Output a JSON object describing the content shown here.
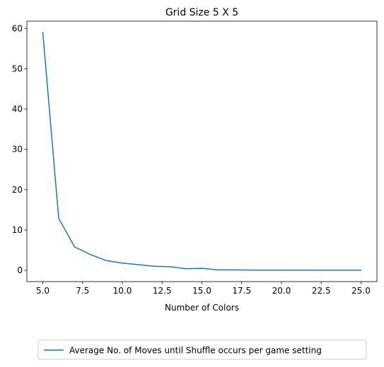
{
  "chart_data": {
    "type": "line",
    "title": "Grid Size 5 X 5",
    "xlabel": "Number of Colors",
    "ylabel": "",
    "xlim": [
      4.0,
      26.0
    ],
    "ylim": [
      -2.8,
      61.8
    ],
    "x_ticks": [
      5.0,
      7.5,
      10.0,
      12.5,
      15.0,
      17.5,
      20.0,
      22.5,
      25.0
    ],
    "x_tick_labels": [
      "5.0",
      "7.5",
      "10.0",
      "12.5",
      "15.0",
      "17.5",
      "20.0",
      "22.5",
      "25.0"
    ],
    "y_ticks": [
      0,
      10,
      20,
      30,
      40,
      50,
      60
    ],
    "y_tick_labels": [
      "0",
      "10",
      "20",
      "30",
      "40",
      "50",
      "60"
    ],
    "grid": false,
    "legend_position": "bottom-center-outside",
    "series": [
      {
        "name": "Average No. of Moves until Shuffle occurs per game setting",
        "color": "#1f77b4",
        "x": [
          5,
          6,
          7,
          8,
          9,
          10,
          11,
          12,
          13,
          14,
          15,
          16,
          17,
          18,
          19,
          20,
          21,
          22,
          23,
          24,
          25
        ],
        "y": [
          59.0,
          12.9,
          5.8,
          3.9,
          2.4,
          1.8,
          1.4,
          1.0,
          0.9,
          0.4,
          0.5,
          0.1,
          0.1,
          0.07,
          0.05,
          0.04,
          0.04,
          0.03,
          0.03,
          0.02,
          0.02
        ]
      }
    ]
  }
}
